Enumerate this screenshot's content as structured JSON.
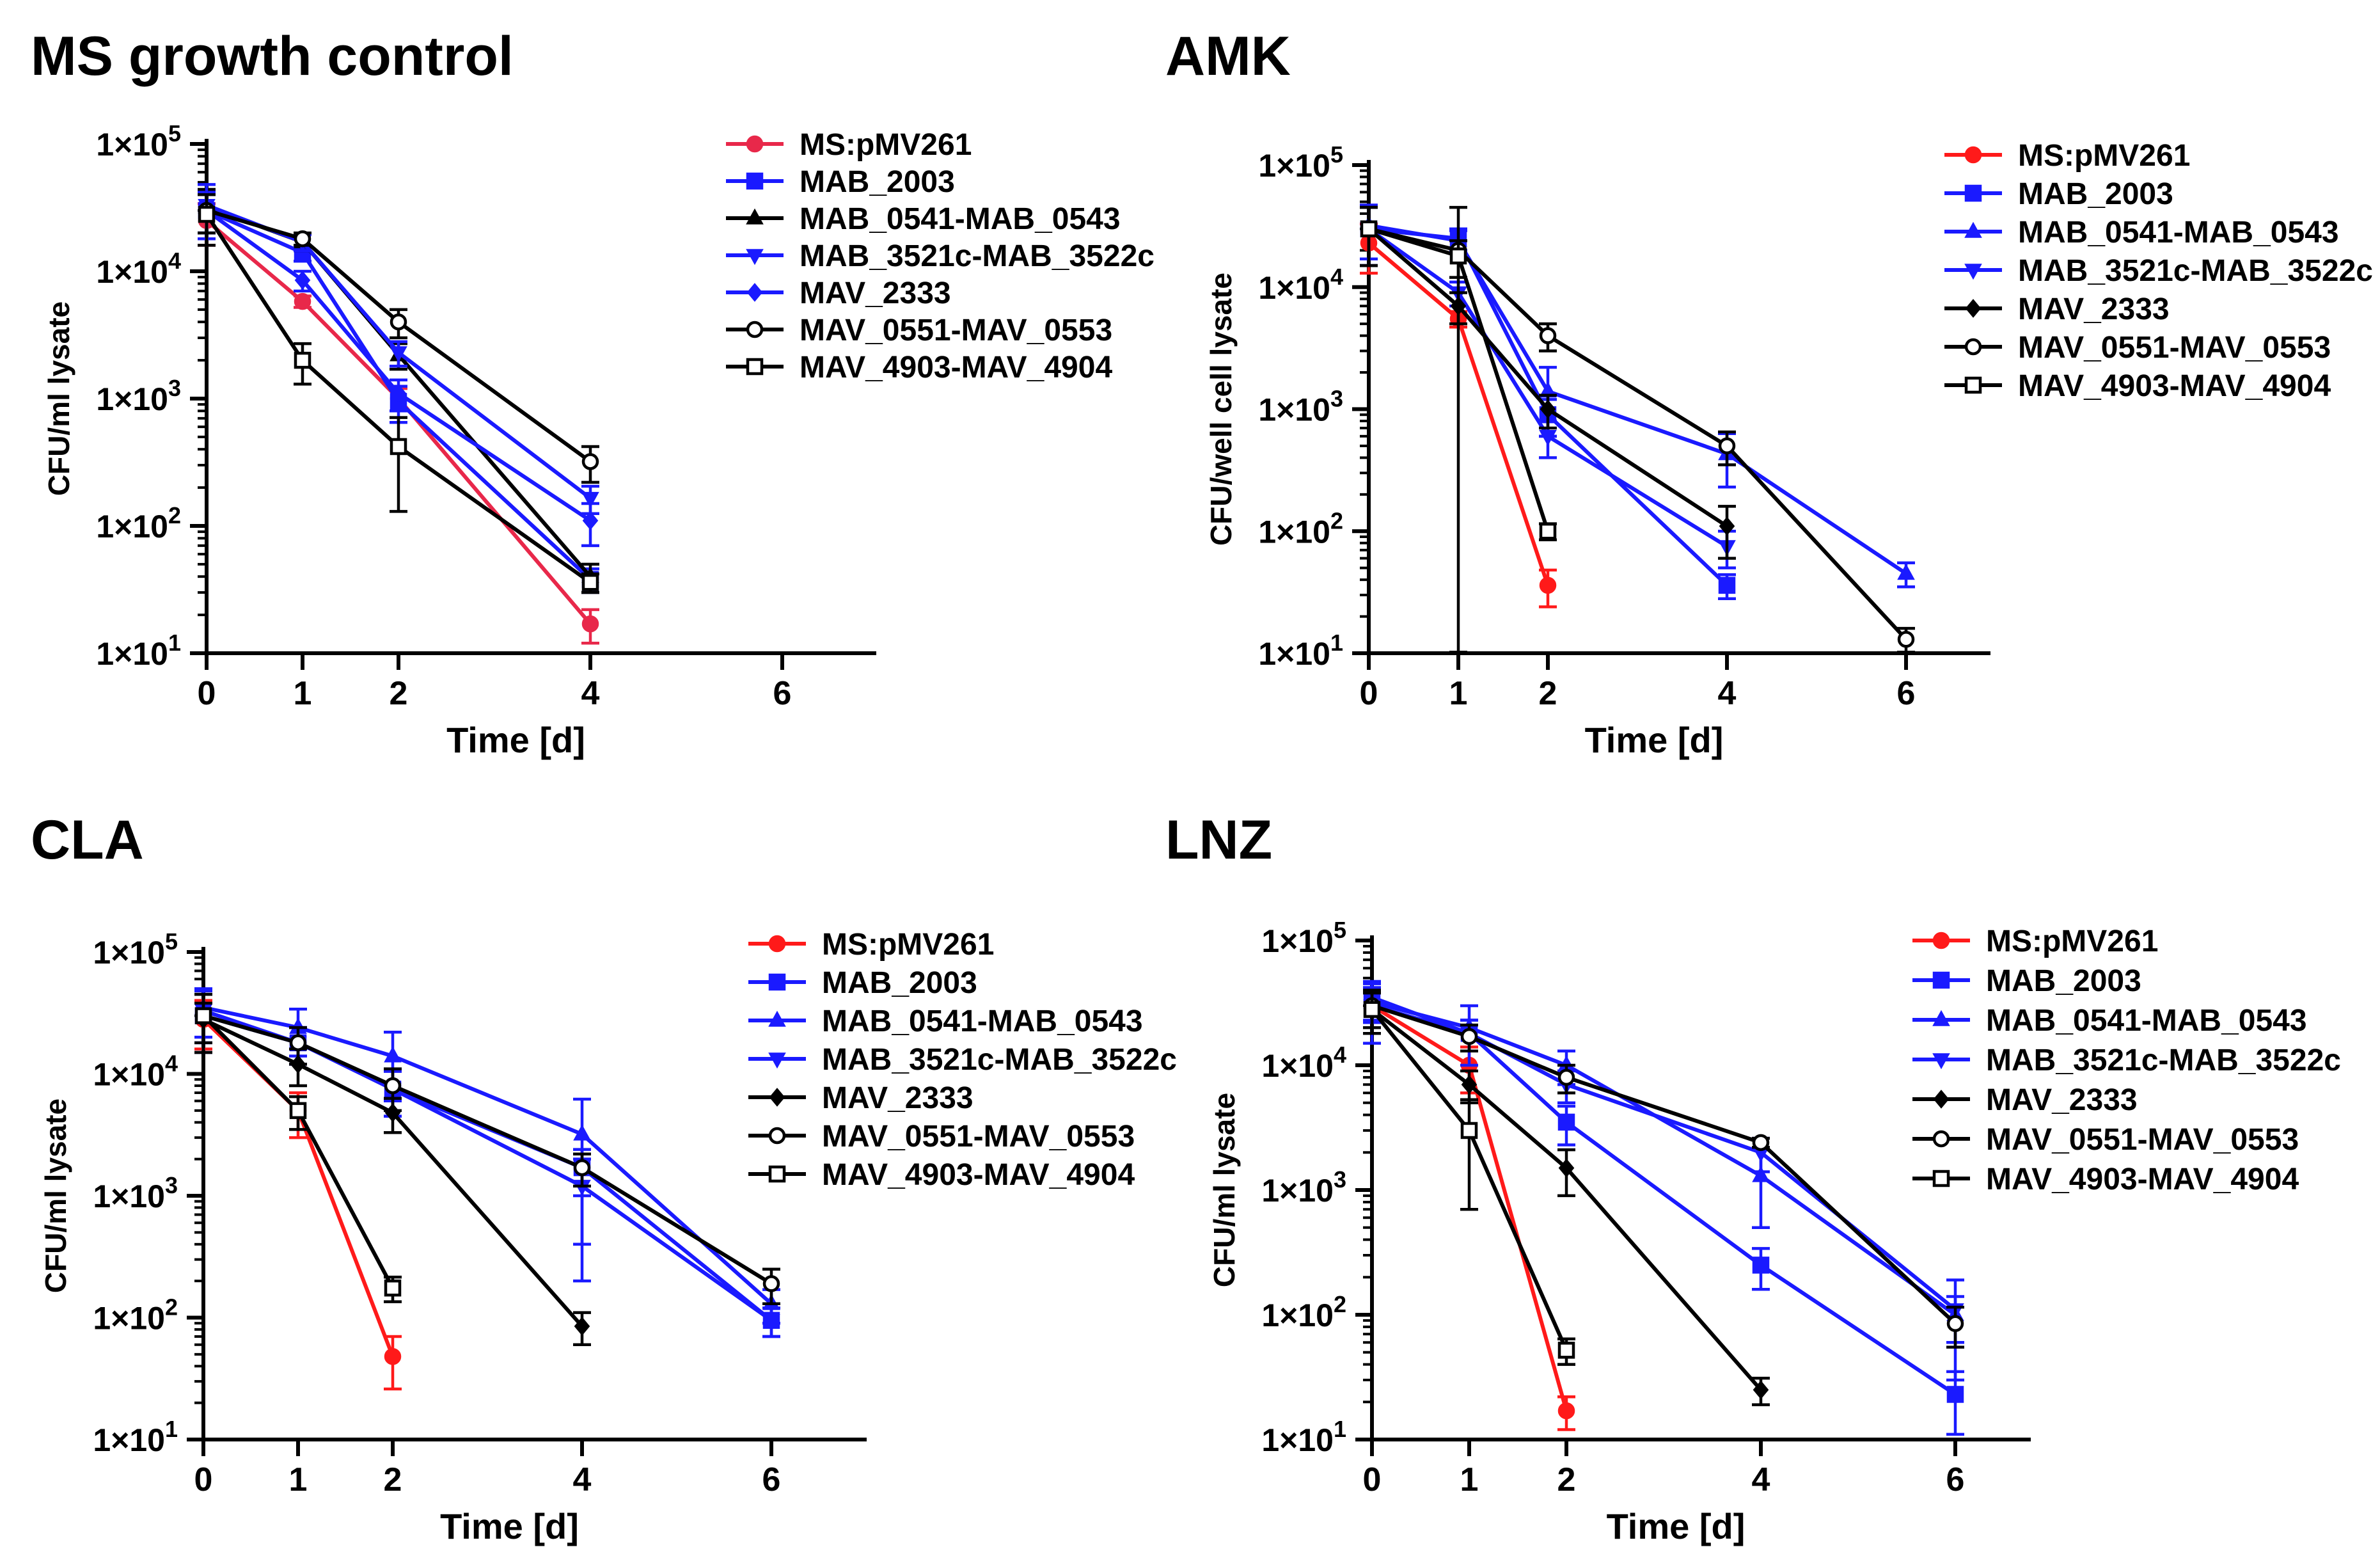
{
  "chart_data": [
    {
      "type": "line",
      "title": "MS growth control",
      "xlabel": "Time [d]",
      "ylabel": "CFU/ml lysate",
      "yscale": "log",
      "xlim": [
        0,
        7
      ],
      "ylim": [
        10,
        100000
      ],
      "xticks": [
        0,
        1,
        2,
        4,
        6
      ],
      "yticks": [
        "1×10",
        "1×10",
        "1×10",
        "1×10",
        "1×10"
      ],
      "ytick_exps": [
        "1",
        "2",
        "3",
        "4",
        "5"
      ],
      "legend_position": "right",
      "series": [
        {
          "name": "MS:pMV261",
          "color": "#e8284a",
          "marker": "circle-filled",
          "x": [
            0,
            1,
            2,
            4
          ],
          "y": [
            25000,
            5800,
            1000,
            17
          ],
          "err": [
            9000,
            600,
            200,
            5
          ]
        },
        {
          "name": "MAB_2003",
          "color": "#1a1aff",
          "marker": "square-filled",
          "x": [
            0,
            1,
            2,
            4
          ],
          "y": [
            30000,
            14000,
            950,
            38
          ],
          "err": [
            12000,
            2000,
            300,
            8
          ]
        },
        {
          "name": "MAB_0541-MAB_0543",
          "color": "#000000",
          "marker": "triangle-up",
          "x": [
            0,
            1,
            2,
            4
          ],
          "y": [
            32000,
            17000,
            2200,
            40
          ],
          "err": [
            12000,
            2500,
            500,
            10
          ]
        },
        {
          "name": "MAB_3521c-MAB_3522c",
          "color": "#1a1aff",
          "marker": "triangle-down",
          "x": [
            0,
            1,
            2,
            4
          ],
          "y": [
            33000,
            17000,
            2300,
            165
          ],
          "err": [
            15000,
            2500,
            500,
            40
          ]
        },
        {
          "name": "MAV_2333",
          "color": "#1a1aff",
          "marker": "diamond-filled",
          "x": [
            0,
            1,
            2,
            4
          ],
          "y": [
            30000,
            8500,
            1100,
            110
          ],
          "err": [
            10000,
            1500,
            300,
            40
          ]
        },
        {
          "name": "MAV_0551-MAV_0553",
          "color": "#000000",
          "marker": "circle-open",
          "x": [
            0,
            1,
            2,
            4
          ],
          "y": [
            30000,
            18000,
            4000,
            320
          ],
          "err": [
            10000,
            2000,
            1000,
            100
          ]
        },
        {
          "name": "MAV_4903-MAV_4904",
          "color": "#000000",
          "marker": "square-open",
          "x": [
            0,
            1,
            2,
            4
          ],
          "y": [
            28000,
            2000,
            420,
            36
          ],
          "err": [
            12000,
            700,
            290,
            6
          ]
        }
      ]
    },
    {
      "type": "line",
      "title": "AMK",
      "xlabel": "Time [d]",
      "ylabel": "CFU/well cell lysate",
      "yscale": "log",
      "xlim": [
        0,
        7
      ],
      "ylim": [
        10,
        100000
      ],
      "xticks": [
        0,
        1,
        2,
        4,
        6
      ],
      "yticks": [
        "1×10",
        "1×10",
        "1×10",
        "1×10",
        "1×10"
      ],
      "ytick_exps": [
        "1",
        "2",
        "3",
        "4",
        "5"
      ],
      "legend_position": "right",
      "series": [
        {
          "name": "MS:pMV261",
          "color": "#ff1a1a",
          "marker": "circle-filled",
          "x": [
            0,
            1,
            2
          ],
          "y": [
            23000,
            5500,
            36
          ],
          "err": [
            10000,
            800,
            12
          ]
        },
        {
          "name": "MAB_2003",
          "color": "#1a1aff",
          "marker": "square-filled",
          "x": [
            0,
            1,
            2,
            4
          ],
          "y": [
            30000,
            25000,
            900,
            36
          ],
          "err": [
            15000,
            5000,
            300,
            8
          ]
        },
        {
          "name": "MAB_0541-MAB_0543",
          "color": "#1a1aff",
          "marker": "triangle-up",
          "x": [
            0,
            1,
            2,
            4,
            6
          ],
          "y": [
            32000,
            24000,
            1400,
            430,
            45
          ],
          "err": [
            15000,
            5000,
            800,
            200,
            10
          ]
        },
        {
          "name": "MAB_3521c-MAB_3522c",
          "color": "#1a1aff",
          "marker": "triangle-down",
          "x": [
            0,
            1,
            2,
            4
          ],
          "y": [
            30000,
            9000,
            600,
            75
          ],
          "err": [
            15000,
            2000,
            200,
            25
          ]
        },
        {
          "name": "MAV_2333",
          "color": "#000000",
          "marker": "diamond-filled",
          "x": [
            0,
            1,
            2,
            4
          ],
          "y": [
            30000,
            7000,
            1000,
            110
          ],
          "err": [
            15000,
            2000,
            300,
            50
          ]
        },
        {
          "name": "MAV_0551-MAV_0553",
          "color": "#000000",
          "marker": "circle-open",
          "x": [
            0,
            1,
            2,
            4,
            6
          ],
          "y": [
            30000,
            20000,
            4000,
            500,
            13
          ],
          "err": [
            15000,
            25000,
            1000,
            150,
            3
          ]
        },
        {
          "name": "MAV_4903-MAV_4904",
          "color": "#000000",
          "marker": "square-open",
          "x": [
            0,
            1,
            2
          ],
          "y": [
            30000,
            18000,
            100
          ],
          "err": [
            15000,
            6000,
            15
          ]
        }
      ]
    },
    {
      "type": "line",
      "title": "CLA",
      "xlabel": "Time [d]",
      "ylabel": "CFU/ml lysate",
      "yscale": "log",
      "xlim": [
        0,
        7
      ],
      "ylim": [
        10,
        100000
      ],
      "xticks": [
        0,
        1,
        2,
        4,
        6
      ],
      "yticks": [
        "1×10",
        "1×10",
        "1×10",
        "1×10",
        "1×10"
      ],
      "ytick_exps": [
        "1",
        "2",
        "3",
        "4",
        "5"
      ],
      "legend_position": "right",
      "series": [
        {
          "name": "MS:pMV261",
          "color": "#ff1a1a",
          "marker": "circle-filled",
          "x": [
            0,
            1,
            2
          ],
          "y": [
            28000,
            5000,
            48
          ],
          "err": [
            12000,
            2000,
            22
          ]
        },
        {
          "name": "MAB_2003",
          "color": "#1a1aff",
          "marker": "square-filled",
          "x": [
            0,
            1,
            2,
            4,
            6
          ],
          "y": [
            30000,
            18000,
            7500,
            1700,
            95
          ],
          "err": [
            15000,
            6000,
            3000,
            700,
            25
          ]
        },
        {
          "name": "MAB_0541-MAB_0543",
          "color": "#1a1aff",
          "marker": "triangle-up",
          "x": [
            0,
            1,
            2,
            4,
            6
          ],
          "y": [
            35000,
            24000,
            14000,
            3200,
            130
          ],
          "err": [
            15000,
            10000,
            8000,
            3000,
            40
          ]
        },
        {
          "name": "MAB_3521c-MAB_3522c",
          "color": "#1a1aff",
          "marker": "triangle-down",
          "x": [
            0,
            1,
            2,
            4,
            6
          ],
          "y": [
            33000,
            18000,
            7500,
            1200,
            95
          ],
          "err": [
            15000,
            6000,
            3000,
            800,
            25
          ]
        },
        {
          "name": "MAV_2333",
          "color": "#000000",
          "marker": "diamond-filled",
          "x": [
            0,
            1,
            2,
            4
          ],
          "y": [
            28000,
            12000,
            4800,
            85
          ],
          "err": [
            10000,
            4000,
            1500,
            25
          ]
        },
        {
          "name": "MAV_0551-MAV_0553",
          "color": "#000000",
          "marker": "circle-open",
          "x": [
            0,
            1,
            2,
            4,
            6
          ],
          "y": [
            30000,
            18000,
            8000,
            1700,
            190
          ],
          "err": [
            15000,
            6000,
            3000,
            500,
            60
          ]
        },
        {
          "name": "MAV_4903-MAV_4904",
          "color": "#000000",
          "marker": "square-open",
          "x": [
            0,
            1,
            2
          ],
          "y": [
            30000,
            5000,
            175
          ],
          "err": [
            15000,
            1500,
            40
          ]
        }
      ]
    },
    {
      "type": "line",
      "title": "LNZ",
      "xlabel": "Time [d]",
      "ylabel": "CFU/ml lysate",
      "yscale": "log",
      "xlim": [
        0,
        7
      ],
      "ylim": [
        10,
        100000
      ],
      "xticks": [
        0,
        1,
        2,
        4,
        6
      ],
      "yticks": [
        "1×10",
        "1×10",
        "1×10",
        "1×10",
        "1×10"
      ],
      "ytick_exps": [
        "1",
        "2",
        "3",
        "4",
        "5"
      ],
      "legend_position": "right",
      "series": [
        {
          "name": "MS:pMV261",
          "color": "#ff1a1a",
          "marker": "circle-filled",
          "x": [
            0,
            1,
            2
          ],
          "y": [
            30000,
            10000,
            17
          ],
          "err": [
            10000,
            4000,
            5
          ]
        },
        {
          "name": "MAB_2003",
          "color": "#1a1aff",
          "marker": "square-filled",
          "x": [
            0,
            1,
            2,
            4,
            6
          ],
          "y": [
            35000,
            18000,
            3500,
            250,
            23
          ],
          "err": [
            12000,
            5000,
            1200,
            90,
            12
          ]
        },
        {
          "name": "MAB_0541-MAB_0543",
          "color": "#1a1aff",
          "marker": "triangle-up",
          "x": [
            0,
            1,
            2,
            4,
            6
          ],
          "y": [
            32000,
            20000,
            10000,
            1300,
            100
          ],
          "err": [
            10000,
            10000,
            3000,
            800,
            40
          ]
        },
        {
          "name": "MAB_3521c-MAB_3522c",
          "color": "#1a1aff",
          "marker": "triangle-down",
          "x": [
            0,
            1,
            2,
            4,
            6
          ],
          "y": [
            30000,
            18000,
            7000,
            2000,
            110
          ],
          "err": [
            15000,
            5000,
            2000,
            600,
            80
          ]
        },
        {
          "name": "MAV_2333",
          "color": "#000000",
          "marker": "diamond-filled",
          "x": [
            0,
            1,
            2,
            4
          ],
          "y": [
            28000,
            7000,
            1500,
            25
          ],
          "err": [
            10000,
            2000,
            600,
            6
          ]
        },
        {
          "name": "MAV_0551-MAV_0553",
          "color": "#000000",
          "marker": "circle-open",
          "x": [
            0,
            1,
            2,
            4,
            6
          ],
          "y": [
            30000,
            17000,
            8000,
            2400,
            85
          ],
          "err": [
            10000,
            4000,
            2000,
            200,
            30
          ]
        },
        {
          "name": "MAV_4903-MAV_4904",
          "color": "#000000",
          "marker": "square-open",
          "x": [
            0,
            1,
            2
          ],
          "y": [
            28000,
            3000,
            52
          ],
          "err": [
            10000,
            2300,
            12
          ]
        }
      ]
    }
  ]
}
